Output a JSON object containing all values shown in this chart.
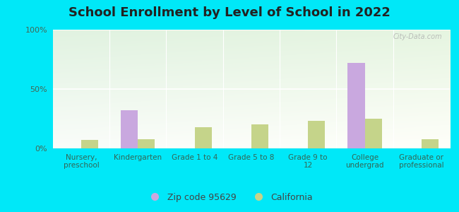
{
  "title": "School Enrollment by Level of School in 2022",
  "categories": [
    "Nursery,\npreschool",
    "Kindergarten",
    "Grade 1 to 4",
    "Grade 5 to 8",
    "Grade 9 to\n12",
    "College\nundergrad",
    "Graduate or\nprofessional"
  ],
  "zip_values": [
    0,
    32,
    0,
    0,
    0,
    72,
    0
  ],
  "ca_values": [
    7,
    8,
    18,
    20,
    23,
    25,
    8
  ],
  "zip_color": "#c9a8df",
  "ca_color": "#c5d48a",
  "zip_label": "Zip code 95629",
  "ca_label": "California",
  "ylim": [
    0,
    100
  ],
  "yticks": [
    0,
    50,
    100
  ],
  "ytick_labels": [
    "0%",
    "50%",
    "100%"
  ],
  "bg_outer": "#00e8f8",
  "title_fontsize": 13,
  "axis_fontsize": 8,
  "legend_fontsize": 9,
  "bar_width": 0.3,
  "watermark": "City-Data.com"
}
